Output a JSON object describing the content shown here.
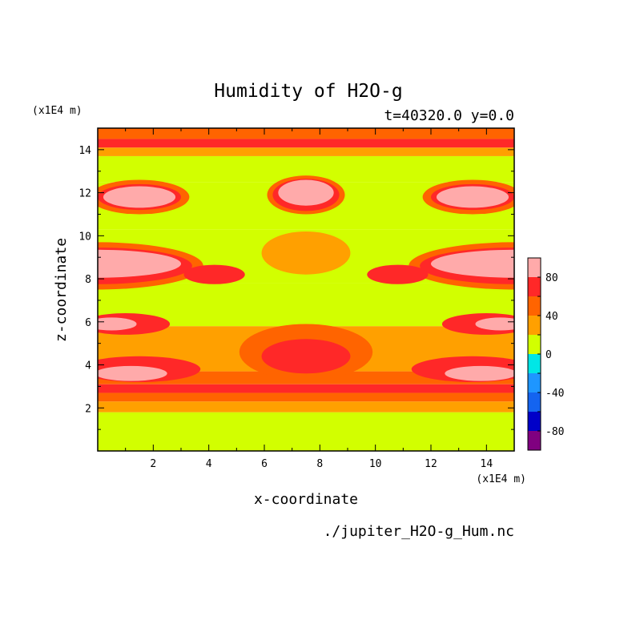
{
  "chart_data": {
    "type": "heatmap",
    "title": "Humidity of H2O-g",
    "subtitle": "t=40320.0 y=0.0",
    "xlabel": "x-coordinate",
    "ylabel": "z-coordinate",
    "x_unit": "(x1E4 m)",
    "y_unit": "(x1E4 m)",
    "source_file": "./jupiter_H2O-g_Hum.nc",
    "xlim": [
      0,
      15
    ],
    "ylim": [
      0,
      15
    ],
    "x_ticks": [
      2,
      4,
      6,
      8,
      10,
      12,
      14
    ],
    "y_ticks": [
      2,
      4,
      6,
      8,
      10,
      12,
      14
    ],
    "colorbar": {
      "range": [
        -100,
        100
      ],
      "step": 20,
      "tick_labels": [
        "80",
        "40",
        "0",
        "-40",
        "-80"
      ],
      "tick_values": [
        80,
        40,
        0,
        -40,
        -80
      ],
      "colors": [
        "#800080",
        "#0000c8",
        "#1464f0",
        "#1e96ff",
        "#00e6e6",
        "#d2ff00",
        "#ffa000",
        "#ff6400",
        "#ff2828",
        "#ffaaaa"
      ]
    },
    "bands": [
      {
        "z": [
          0,
          1.8
        ],
        "value": 10
      },
      {
        "z": [
          1.8,
          2.3
        ],
        "value": 30
      },
      {
        "z": [
          2.3,
          2.7
        ],
        "value": 50
      },
      {
        "z": [
          2.7,
          3.1
        ],
        "value": 70
      },
      {
        "z": [
          3.1,
          3.7
        ],
        "value": 50
      },
      {
        "z": [
          3.7,
          5.8
        ],
        "value": 30
      },
      {
        "z": [
          5.8,
          7.8
        ],
        "value": 10
      },
      {
        "z": [
          7.8,
          10.3
        ],
        "value": 10
      },
      {
        "z": [
          10.3,
          12.5
        ],
        "value": 10
      },
      {
        "z": [
          12.5,
          13.7
        ],
        "value": 10
      },
      {
        "z": [
          13.7,
          14.1
        ],
        "value": 30
      },
      {
        "z": [
          14.1,
          14.5
        ],
        "value": 70
      },
      {
        "z": [
          14.5,
          15
        ],
        "value": 50
      }
    ],
    "blobs": [
      {
        "x": 0.0,
        "z": 8.6,
        "rx": 3.8,
        "rz": 1.1,
        "value": 50
      },
      {
        "x": 0.0,
        "z": 8.6,
        "rx": 3.4,
        "rz": 0.85,
        "value": 70
      },
      {
        "x": 0.0,
        "z": 8.7,
        "rx": 3.0,
        "rz": 0.65,
        "value": 90
      },
      {
        "x": 15.0,
        "z": 8.6,
        "rx": 3.8,
        "rz": 1.1,
        "value": 50
      },
      {
        "x": 15.0,
        "z": 8.6,
        "rx": 3.4,
        "rz": 0.85,
        "value": 70
      },
      {
        "x": 15.0,
        "z": 8.7,
        "rx": 3.0,
        "rz": 0.65,
        "value": 90
      },
      {
        "x": 1.5,
        "z": 11.8,
        "rx": 1.8,
        "rz": 0.8,
        "value": 50
      },
      {
        "x": 1.5,
        "z": 11.8,
        "rx": 1.5,
        "rz": 0.6,
        "value": 70
      },
      {
        "x": 1.5,
        "z": 11.8,
        "rx": 1.3,
        "rz": 0.5,
        "value": 90
      },
      {
        "x": 13.5,
        "z": 11.8,
        "rx": 1.8,
        "rz": 0.8,
        "value": 50
      },
      {
        "x": 13.5,
        "z": 11.8,
        "rx": 1.5,
        "rz": 0.6,
        "value": 70
      },
      {
        "x": 13.5,
        "z": 11.8,
        "rx": 1.3,
        "rz": 0.5,
        "value": 90
      },
      {
        "x": 7.5,
        "z": 11.9,
        "rx": 1.4,
        "rz": 0.9,
        "value": 50
      },
      {
        "x": 7.5,
        "z": 11.9,
        "rx": 1.2,
        "rz": 0.75,
        "value": 70
      },
      {
        "x": 7.5,
        "z": 12.0,
        "rx": 1.0,
        "rz": 0.6,
        "value": 90
      },
      {
        "x": 7.5,
        "z": 9.2,
        "rx": 1.6,
        "rz": 1.0,
        "value": 30
      },
      {
        "x": 7.5,
        "z": 4.6,
        "rx": 2.4,
        "rz": 1.3,
        "value": 50
      },
      {
        "x": 7.5,
        "z": 4.4,
        "rx": 1.6,
        "rz": 0.8,
        "value": 70
      },
      {
        "x": 1.0,
        "z": 5.9,
        "rx": 1.6,
        "rz": 0.5,
        "value": 70
      },
      {
        "x": 0.5,
        "z": 5.9,
        "rx": 0.9,
        "rz": 0.3,
        "value": 90
      },
      {
        "x": 14.0,
        "z": 5.9,
        "rx": 1.6,
        "rz": 0.5,
        "value": 70
      },
      {
        "x": 14.5,
        "z": 5.9,
        "rx": 0.9,
        "rz": 0.3,
        "value": 90
      },
      {
        "x": 1.5,
        "z": 3.8,
        "rx": 2.2,
        "rz": 0.6,
        "value": 70
      },
      {
        "x": 1.2,
        "z": 3.6,
        "rx": 1.3,
        "rz": 0.35,
        "value": 90
      },
      {
        "x": 13.5,
        "z": 3.8,
        "rx": 2.2,
        "rz": 0.6,
        "value": 70
      },
      {
        "x": 13.8,
        "z": 3.6,
        "rx": 1.3,
        "rz": 0.35,
        "value": 90
      },
      {
        "x": 4.2,
        "z": 8.2,
        "rx": 1.1,
        "rz": 0.45,
        "value": 70
      },
      {
        "x": 10.8,
        "z": 8.2,
        "rx": 1.1,
        "rz": 0.45,
        "value": 70
      }
    ]
  }
}
